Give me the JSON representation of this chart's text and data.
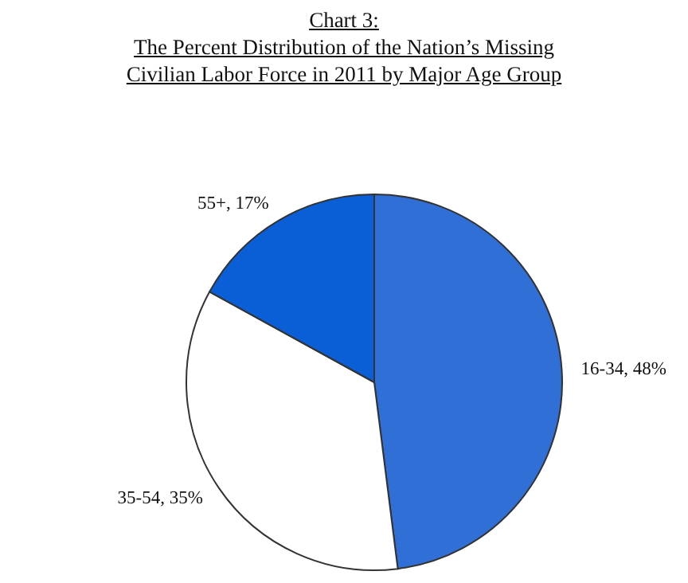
{
  "chart_data": {
    "type": "pie",
    "title": "Chart 3:\nThe Percent Distribution of the Nation’s Missing\nCivilian Labor Force in 2011 by Major Age Group",
    "categories": [
      "16-34",
      "35-54",
      "55+"
    ],
    "values": [
      48,
      35,
      17
    ],
    "value_labels": [
      "48%",
      "35%",
      "17%"
    ],
    "colors": [
      "#2f6fd6",
      "#ffffff",
      "#0b5fd6"
    ],
    "legend": false
  }
}
